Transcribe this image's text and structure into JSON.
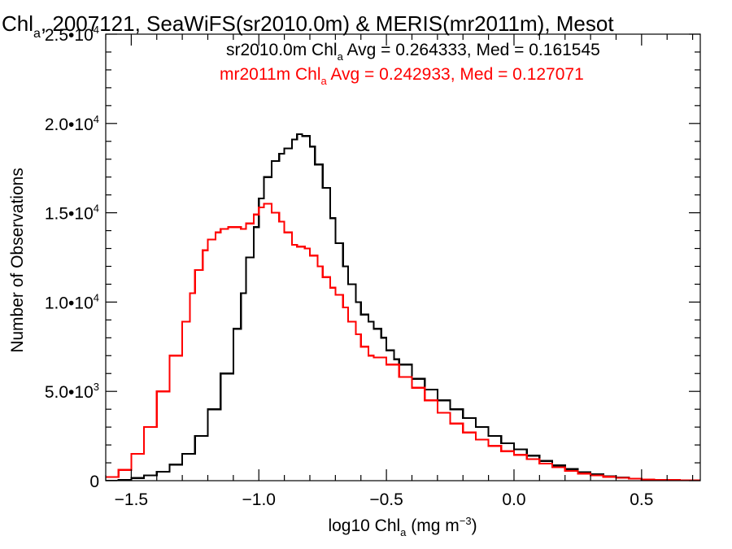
{
  "chart_data": {
    "type": "line",
    "title_parts": {
      "pre": "Chl",
      "sub": "a",
      "post": ", 2007121, SeaWiFS(sr2010.0m) & MERIS(mr2011m), Mesot"
    },
    "xlabel_parts": {
      "pre": "log10 Chl",
      "sub": "a",
      "mid": " (mg m",
      "sup": "−3",
      "post": ")"
    },
    "ylabel": "Number of Observations",
    "xlim": [
      -1.6,
      0.73
    ],
    "ylim": [
      0,
      25000
    ],
    "x_ticks": [
      {
        "value": -1.5,
        "label": "−1.5"
      },
      {
        "value": -1.0,
        "label": "−1.0"
      },
      {
        "value": -0.5,
        "label": "−0.5"
      },
      {
        "value": 0.0,
        "label": "0.0"
      },
      {
        "value": 0.5,
        "label": "0.5"
      }
    ],
    "y_ticks": [
      {
        "value": 0,
        "mant": "0",
        "exp": ""
      },
      {
        "value": 5000,
        "mant": "5.0•10",
        "exp": "3"
      },
      {
        "value": 10000,
        "mant": "1.0•10",
        "exp": "4"
      },
      {
        "value": 15000,
        "mant": "1.5•10",
        "exp": "4"
      },
      {
        "value": 20000,
        "mant": "2.0•10",
        "exp": "4"
      },
      {
        "value": 25000,
        "mant": "2.5•10",
        "exp": "4"
      }
    ],
    "legend": [
      {
        "color": "#000000",
        "pre": "sr2010.0m Chl",
        "sub": "a",
        "post": " Avg = 0.264333, Med = 0.161545"
      },
      {
        "color": "#ff0000",
        "pre": "mr2011m Chl",
        "sub": "a",
        "post": " Avg = 0.242933, Med = 0.127071"
      }
    ],
    "series": [
      {
        "color": "#000000",
        "x": [
          -1.6,
          -1.55,
          -1.5,
          -1.45,
          -1.4,
          -1.35,
          -1.3,
          -1.25,
          -1.2,
          -1.15,
          -1.1,
          -1.07,
          -1.05,
          -1.02,
          -1.0,
          -0.98,
          -0.95,
          -0.92,
          -0.9,
          -0.87,
          -0.85,
          -0.83,
          -0.8,
          -0.78,
          -0.75,
          -0.72,
          -0.7,
          -0.67,
          -0.65,
          -0.62,
          -0.6,
          -0.57,
          -0.55,
          -0.52,
          -0.5,
          -0.47,
          -0.45,
          -0.4,
          -0.35,
          -0.3,
          -0.25,
          -0.2,
          -0.15,
          -0.1,
          -0.05,
          0.0,
          0.05,
          0.1,
          0.15,
          0.2,
          0.25,
          0.3,
          0.35,
          0.4,
          0.45,
          0.5,
          0.55,
          0.6,
          0.65,
          0.7,
          0.73
        ],
        "y": [
          0,
          50,
          150,
          300,
          500,
          900,
          1500,
          2500,
          4000,
          6000,
          8500,
          10500,
          12500,
          14200,
          15800,
          17000,
          17900,
          18300,
          18600,
          19100,
          19400,
          19300,
          18700,
          17700,
          16400,
          14700,
          13300,
          12000,
          11000,
          10000,
          9300,
          8900,
          8500,
          8000,
          7300,
          6800,
          6500,
          5700,
          5100,
          4500,
          4000,
          3500,
          3000,
          2500,
          2100,
          1750,
          1400,
          1100,
          850,
          650,
          480,
          350,
          250,
          170,
          110,
          70,
          45,
          25,
          15,
          8,
          5
        ]
      },
      {
        "color": "#ff0000",
        "x": [
          -1.6,
          -1.55,
          -1.5,
          -1.45,
          -1.4,
          -1.35,
          -1.3,
          -1.27,
          -1.25,
          -1.22,
          -1.2,
          -1.17,
          -1.15,
          -1.12,
          -1.1,
          -1.07,
          -1.05,
          -1.02,
          -1.0,
          -0.98,
          -0.95,
          -0.92,
          -0.9,
          -0.87,
          -0.85,
          -0.82,
          -0.8,
          -0.77,
          -0.75,
          -0.72,
          -0.7,
          -0.67,
          -0.65,
          -0.62,
          -0.6,
          -0.57,
          -0.55,
          -0.5,
          -0.45,
          -0.4,
          -0.35,
          -0.3,
          -0.25,
          -0.2,
          -0.15,
          -0.1,
          -0.05,
          0.0,
          0.05,
          0.1,
          0.15,
          0.2,
          0.25,
          0.3,
          0.35,
          0.4,
          0.45,
          0.5,
          0.55,
          0.6,
          0.65,
          0.7,
          0.73
        ],
        "y": [
          200,
          600,
          1500,
          3000,
          5000,
          7000,
          8900,
          10500,
          11800,
          12900,
          13500,
          13900,
          14100,
          14200,
          14200,
          14100,
          14400,
          14900,
          15300,
          15500,
          15000,
          14500,
          13900,
          13200,
          13100,
          13000,
          12600,
          12000,
          11400,
          10800,
          10400,
          9700,
          8900,
          8200,
          7500,
          7000,
          6900,
          6500,
          5800,
          5200,
          4500,
          3800,
          3200,
          2700,
          2300,
          1950,
          1650,
          1450,
          1200,
          950,
          750,
          550,
          400,
          300,
          220,
          160,
          110,
          75,
          50,
          30,
          18,
          10,
          5
        ]
      }
    ]
  }
}
